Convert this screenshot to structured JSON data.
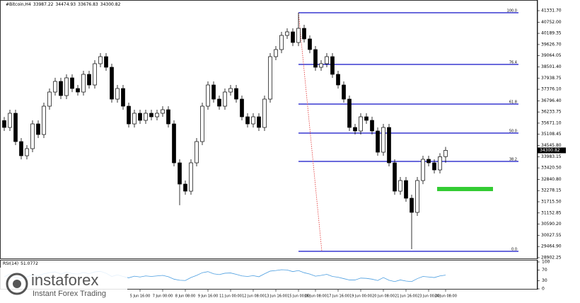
{
  "chart_data": {
    "type": "candlestick",
    "symbol": "#Bitcoin,H4",
    "ylim": [
      28830,
      41760
    ],
    "yticks": [
      {
        "value": 41331.7,
        "label": "41331.70"
      },
      {
        "value": 40752,
        "label": "40752.00"
      },
      {
        "value": 40189.35,
        "label": "40189.35"
      },
      {
        "value": 39626.7,
        "label": "39626.70"
      },
      {
        "value": 39064.05,
        "label": "39064.05"
      },
      {
        "value": 38501.4,
        "label": "38501.40"
      },
      {
        "value": 37938.75,
        "label": "37938.75"
      },
      {
        "value": 37376.1,
        "label": "37376.10"
      },
      {
        "value": 36796.4,
        "label": "36796.40"
      },
      {
        "value": 36233.75,
        "label": "36233.75"
      },
      {
        "value": 35671.1,
        "label": "35671.10"
      },
      {
        "value": 35108.45,
        "label": "35108.45"
      },
      {
        "value": 34545.8,
        "label": "34545.80"
      },
      {
        "value": 33983.15,
        "label": "33983.15"
      },
      {
        "value": 33420.5,
        "label": "33420.50"
      },
      {
        "value": 32840.8,
        "label": "32840.80"
      },
      {
        "value": 32278.15,
        "label": "32278.15"
      },
      {
        "value": 31715.5,
        "label": "31715.50"
      },
      {
        "value": 31152.85,
        "label": "31152.85"
      },
      {
        "value": 30590.2,
        "label": "30590.20"
      },
      {
        "value": 30027.55,
        "label": "30027.55"
      },
      {
        "value": 29464.9,
        "label": "29464.90"
      },
      {
        "value": 28902.25,
        "label": "28902.25"
      }
    ],
    "categories": [
      null,
      null,
      null,
      null,
      null,
      null,
      null,
      null,
      null,
      null,
      null,
      null,
      null,
      null,
      null,
      null,
      null,
      null,
      null,
      null,
      null,
      null,
      null,
      null,
      "5 Jun 16:00",
      null,
      null,
      null,
      "7 Jun 00:00",
      null,
      null,
      null,
      "8 Jun 08:00",
      null,
      null,
      null,
      "9 Jun 16:00",
      null,
      null,
      null,
      "11 Jun 00:00",
      null,
      null,
      null,
      "12 Jun 08:00",
      null,
      null,
      null,
      "13 Jun 16:00",
      null,
      null,
      null,
      "15 Jun 00:00",
      null,
      null,
      "16 Jun 08:00",
      null,
      null,
      null,
      "17 Jun 16:00",
      null,
      null,
      null,
      "19 Jun 00:00",
      null,
      null,
      null,
      "20 Jun 08:00",
      null,
      null,
      null,
      "21 Jun 16:00",
      null,
      null,
      null,
      "23 Jun 00:00",
      null,
      null,
      "24 Jun 08:00"
    ],
    "ohlc": [
      [
        35800,
        35980,
        35275,
        35455
      ],
      [
        35455,
        36348,
        35275,
        36168
      ],
      [
        36168,
        36348,
        34563,
        34743
      ],
      [
        34743,
        34923,
        33850,
        34030
      ],
      [
        34030,
        34567,
        33850,
        34387
      ],
      [
        34387,
        35813,
        34207,
        35633
      ],
      [
        35633,
        35813,
        34919,
        35099
      ],
      [
        35099,
        36704,
        34919,
        36524
      ],
      [
        36524,
        37416,
        36344,
        37236
      ],
      [
        37236,
        37951,
        37056,
        37771
      ],
      [
        37771,
        37951,
        36878,
        37058
      ],
      [
        37058,
        38129,
        36878,
        37949
      ],
      [
        37949,
        38129,
        37234,
        37414
      ],
      [
        37414,
        37594,
        37056,
        37236
      ],
      [
        37236,
        38307,
        37056,
        38127
      ],
      [
        38127,
        38307,
        37412,
        37592
      ],
      [
        37592,
        38841,
        37412,
        38661
      ],
      [
        38661,
        39197,
        38481,
        39017
      ],
      [
        39017,
        39197,
        38303,
        38483
      ],
      [
        38483,
        38663,
        36700,
        36880
      ],
      [
        36880,
        37594,
        36700,
        37414
      ],
      [
        37414,
        37594,
        36344,
        36524
      ],
      [
        36524,
        36704,
        35453,
        35633
      ],
      [
        35633,
        36348,
        35453,
        36168
      ],
      [
        36168,
        36348,
        35632,
        35812
      ],
      [
        35812,
        36348,
        35632,
        36168
      ],
      [
        36168,
        36348,
        35810,
        35990
      ],
      [
        35990,
        36348,
        35810,
        36168
      ],
      [
        36168,
        36526,
        35988,
        36346
      ],
      [
        36346,
        36526,
        35453,
        35633
      ],
      [
        35633,
        35813,
        33494,
        33674
      ],
      [
        33674,
        33854,
        31540,
        32605
      ],
      [
        32605,
        32785,
        32069,
        32249
      ],
      [
        32249,
        33854,
        32069,
        33674
      ],
      [
        33674,
        34923,
        33494,
        34743
      ],
      [
        34743,
        36704,
        34563,
        36524
      ],
      [
        36524,
        37772,
        36344,
        37592
      ],
      [
        37592,
        37772,
        36700,
        36880
      ],
      [
        36880,
        37060,
        36344,
        36524
      ],
      [
        36524,
        37416,
        36344,
        37236
      ],
      [
        37236,
        37594,
        37056,
        37414
      ],
      [
        37414,
        37594,
        36700,
        36880
      ],
      [
        36880,
        37060,
        35810,
        35990
      ],
      [
        35990,
        36170,
        35453,
        35633
      ],
      [
        35633,
        36170,
        35453,
        35990
      ],
      [
        35990,
        36170,
        35275,
        35455
      ],
      [
        35455,
        37060,
        35275,
        36880
      ],
      [
        36880,
        39197,
        36700,
        39017
      ],
      [
        39017,
        39553,
        38837,
        39373
      ],
      [
        39373,
        40266,
        39193,
        40086
      ],
      [
        40086,
        40444,
        39906,
        40264
      ],
      [
        40264,
        40444,
        39549,
        39729
      ],
      [
        39729,
        41226,
        39549,
        40442
      ],
      [
        40442,
        40622,
        39728,
        39908
      ],
      [
        39908,
        40088,
        39193,
        39373
      ],
      [
        39373,
        39553,
        38303,
        38483
      ],
      [
        38483,
        38841,
        38303,
        38661
      ],
      [
        38661,
        39197,
        38481,
        39017
      ],
      [
        39017,
        39197,
        37947,
        38127
      ],
      [
        38127,
        38307,
        37412,
        37592
      ],
      [
        37592,
        37772,
        36700,
        36880
      ],
      [
        36880,
        37060,
        35275,
        35455
      ],
      [
        35455,
        35635,
        35097,
        35277
      ],
      [
        35277,
        36170,
        35097,
        35990
      ],
      [
        35990,
        36170,
        35632,
        35812
      ],
      [
        35812,
        35992,
        35097,
        35277
      ],
      [
        35277,
        35457,
        34029,
        34209
      ],
      [
        34209,
        35635,
        34029,
        35455
      ],
      [
        35455,
        35635,
        33494,
        33674
      ],
      [
        33674,
        33854,
        32069,
        32249
      ],
      [
        32249,
        32963,
        32069,
        32783
      ],
      [
        32783,
        32963,
        31713,
        31893
      ],
      [
        31893,
        32073,
        29330,
        31181
      ],
      [
        31181,
        32963,
        31001,
        32783
      ],
      [
        32783,
        34032,
        32603,
        33852
      ],
      [
        33852,
        34032,
        33494,
        33674
      ],
      [
        33674,
        33854,
        33138,
        33318
      ],
      [
        33318,
        34160,
        33138,
        33980
      ],
      [
        33987.22,
        34474.93,
        33676.83,
        34300.82
      ]
    ],
    "fib": [
      {
        "label": "100.0",
        "price": 41226
      },
      {
        "label": "76.4",
        "price": 38625
      },
      {
        "label": "61.8",
        "price": 36631
      },
      {
        "label": "50.0",
        "price": 35170
      },
      {
        "label": "38.2",
        "price": 33745
      },
      {
        "label": "0.0",
        "price": 29222
      }
    ],
    "fib_color": "#1010c8",
    "zone": [
      32250,
      32463
    ],
    "zone_color": "#33cc33",
    "rsi": {
      "name": "RSI(14)",
      "color": "#4a9de0",
      "ylim": [
        0,
        100
      ],
      "yticks": [
        100,
        70,
        30,
        0
      ],
      "values": [
        45,
        55,
        42,
        38,
        44,
        52,
        48,
        56,
        60,
        63,
        55,
        62,
        57,
        55,
        61,
        56,
        63,
        65,
        58,
        46,
        52,
        46,
        41,
        47,
        44,
        48,
        46,
        48,
        50,
        45,
        36,
        32,
        31,
        42,
        50,
        60,
        64,
        56,
        53,
        58,
        59,
        54,
        48,
        46,
        49,
        45,
        56,
        66,
        68,
        71,
        70,
        64,
        68,
        60,
        55,
        47,
        50,
        54,
        46,
        43,
        38,
        33,
        33,
        40,
        39,
        36,
        31,
        42,
        32,
        27,
        33,
        29,
        27,
        38,
        46,
        44,
        42,
        48,
        51.0772
      ]
    },
    "logo": {
      "name": "instaforex",
      "tagline": "Instant Forex Trading"
    }
  }
}
